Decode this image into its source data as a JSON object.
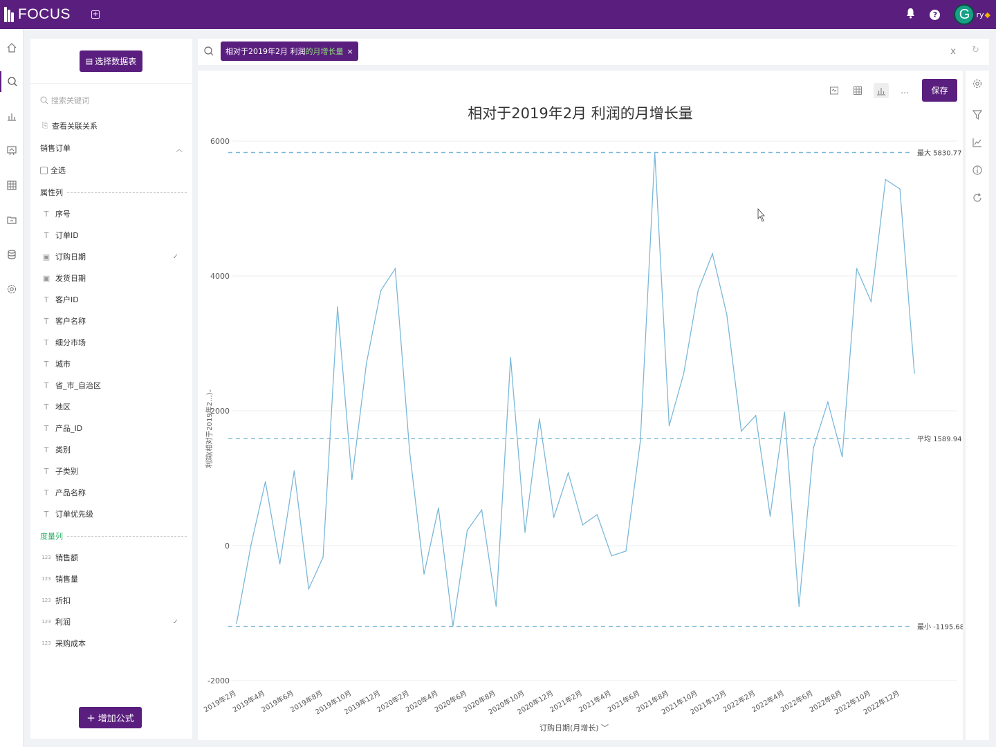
{
  "app": {
    "logo_text": "FOCUS",
    "user_name_fragment": "ry"
  },
  "sidebar": {
    "select_table_label": "选择数据表",
    "search_placeholder": "搜索关键词",
    "view_relations_label": "查看关联关系",
    "table_name": "销售订单",
    "select_all_label": "全选",
    "attr_section_label": "属性列",
    "measure_section_label": "度量列",
    "attributes": [
      {
        "label": "序号",
        "type": "text",
        "checked": false
      },
      {
        "label": "订单ID",
        "type": "text",
        "checked": false
      },
      {
        "label": "订购日期",
        "type": "date",
        "checked": true
      },
      {
        "label": "发货日期",
        "type": "date",
        "checked": false
      },
      {
        "label": "客户ID",
        "type": "text",
        "checked": false
      },
      {
        "label": "客户名称",
        "type": "text",
        "checked": false
      },
      {
        "label": "细分市场",
        "type": "text",
        "checked": false
      },
      {
        "label": "城市",
        "type": "text",
        "checked": false
      },
      {
        "label": "省_市_自治区",
        "type": "text",
        "checked": false
      },
      {
        "label": "地区",
        "type": "text",
        "checked": false
      },
      {
        "label": "产品_ID",
        "type": "text",
        "checked": false
      },
      {
        "label": "类别",
        "type": "text",
        "checked": false
      },
      {
        "label": "子类别",
        "type": "text",
        "checked": false
      },
      {
        "label": "产品名称",
        "type": "text",
        "checked": false
      },
      {
        "label": "订单优先级",
        "type": "text",
        "checked": false
      }
    ],
    "measures": [
      {
        "label": "销售额",
        "checked": false
      },
      {
        "label": "销售量",
        "checked": false
      },
      {
        "label": "折扣",
        "checked": false
      },
      {
        "label": "利润",
        "checked": true
      },
      {
        "label": "采购成本",
        "checked": false
      }
    ],
    "add_formula_label": "增加公式"
  },
  "query": {
    "chip_prefix": "相对于2019年2月  利润",
    "chip_highlight": "的月增长量",
    "chip_close": "×",
    "close_label": "x"
  },
  "toolbar": {
    "more_label": "...",
    "save_label": "保存"
  },
  "chart_data": {
    "type": "line",
    "title": "相对于2019年2月  利润的月增长量",
    "xlabel": "订购日期(月增长)",
    "ylabel": "利润(相对于2019年2...)",
    "ylim": [
      -2000,
      6000
    ],
    "yticks": [
      -2000,
      0,
      2000,
      4000,
      6000
    ],
    "x_tick_labels": [
      "2019年2月",
      "2019年4月",
      "2019年6月",
      "2019年8月",
      "2019年10月",
      "2019年12月",
      "2020年2月",
      "2020年4月",
      "2020年6月",
      "2020年8月",
      "2020年10月",
      "2020年12月",
      "2021年2月",
      "2021年4月",
      "2021年6月",
      "2021年8月",
      "2021年10月",
      "2021年12月",
      "2022年2月",
      "2022年4月",
      "2022年6月",
      "2022年8月",
      "2022年10月",
      "2022年12月"
    ],
    "color": "#7ab8d9",
    "ref_color": "#7ab8d9",
    "series": [
      {
        "values": [
          -1150,
          10,
          950,
          -270,
          1110,
          -640,
          -170,
          3540,
          980,
          2700,
          3780,
          4110,
          1400,
          -420,
          560,
          -1195.68,
          230,
          530,
          -900,
          2790,
          200,
          1880,
          420,
          1080,
          310,
          460,
          -150,
          -80,
          1550,
          5830.77,
          1780,
          2550,
          3780,
          4330,
          3420,
          1700,
          1930,
          440,
          1980,
          -900,
          1450,
          2130,
          1320,
          4110,
          3620,
          5430,
          5290,
          2560
        ]
      }
    ],
    "reference_lines": [
      {
        "label": "最大 5830.77",
        "value": 5830.77
      },
      {
        "label": "平均 1589.94",
        "value": 1589.94
      },
      {
        "label": "最小 -1195.68",
        "value": -1195.68
      }
    ]
  }
}
